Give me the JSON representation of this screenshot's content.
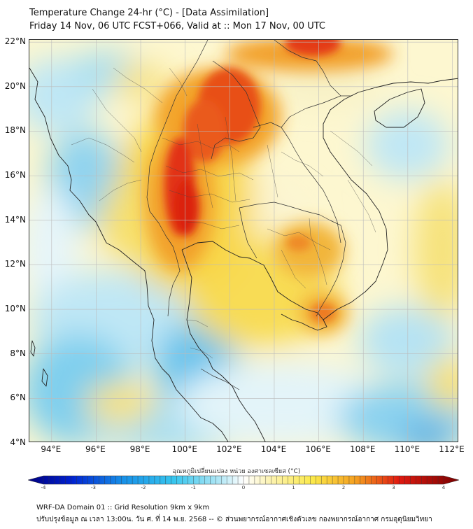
{
  "header": {
    "title": "Temperature Change 24-hr (°C) - [Data Assimilation]",
    "subtitle": "Friday 14 Nov, 06 UTC FCST+066, Valid at :: Mon 17 Nov, 00 UTC"
  },
  "map": {
    "projection": "lat-lon",
    "lon_range": [
      93.0,
      112.3
    ],
    "lat_range": [
      4.0,
      22.1
    ],
    "lat_labels": [
      "22°N",
      "20°N",
      "18°N",
      "16°N",
      "14°N",
      "12°N",
      "10°N",
      "8°N",
      "6°N",
      "4°N"
    ],
    "lon_labels": [
      "94°E",
      "96°E",
      "98°E",
      "100°E",
      "102°E",
      "104°E",
      "106°E",
      "108°E",
      "110°E",
      "112°E"
    ],
    "gridlines": true,
    "features": [
      "coastlines",
      "country borders",
      "province boundaries"
    ]
  },
  "colorbar": {
    "title": "อุณหภูมิเปลี่ยนแปลง หน่วย องศาเซลเซียส (°C)",
    "colormap": "blue-white-yellow-red",
    "range": [
      -4,
      4
    ],
    "ticks": [
      "-4",
      "-3",
      "-2",
      "-1",
      "0",
      "1",
      "2",
      "3",
      "4"
    ],
    "extend": "both",
    "colors": {
      "min": "#00007f",
      "cyan": "#38c6ee",
      "white": "#ffffff",
      "yellow": "#fbe94a",
      "orange": "#f5a020",
      "red": "#e01a10",
      "max": "#7a0000"
    }
  },
  "footer": {
    "line1": "WRF-DA Domain 01 :: Grid Resolution 9km x 9km",
    "line2": "ปรับปรุงข้อมูล ณ เวลา 13:00น. วัน ศ. ที่ 14 พ.ย. 2568 -- © ส่วนพยากรณ์อากาศเชิงตัวเลข กองพยากรณ์อากาศ กรมอุตุนิยมวิทยา"
  }
}
